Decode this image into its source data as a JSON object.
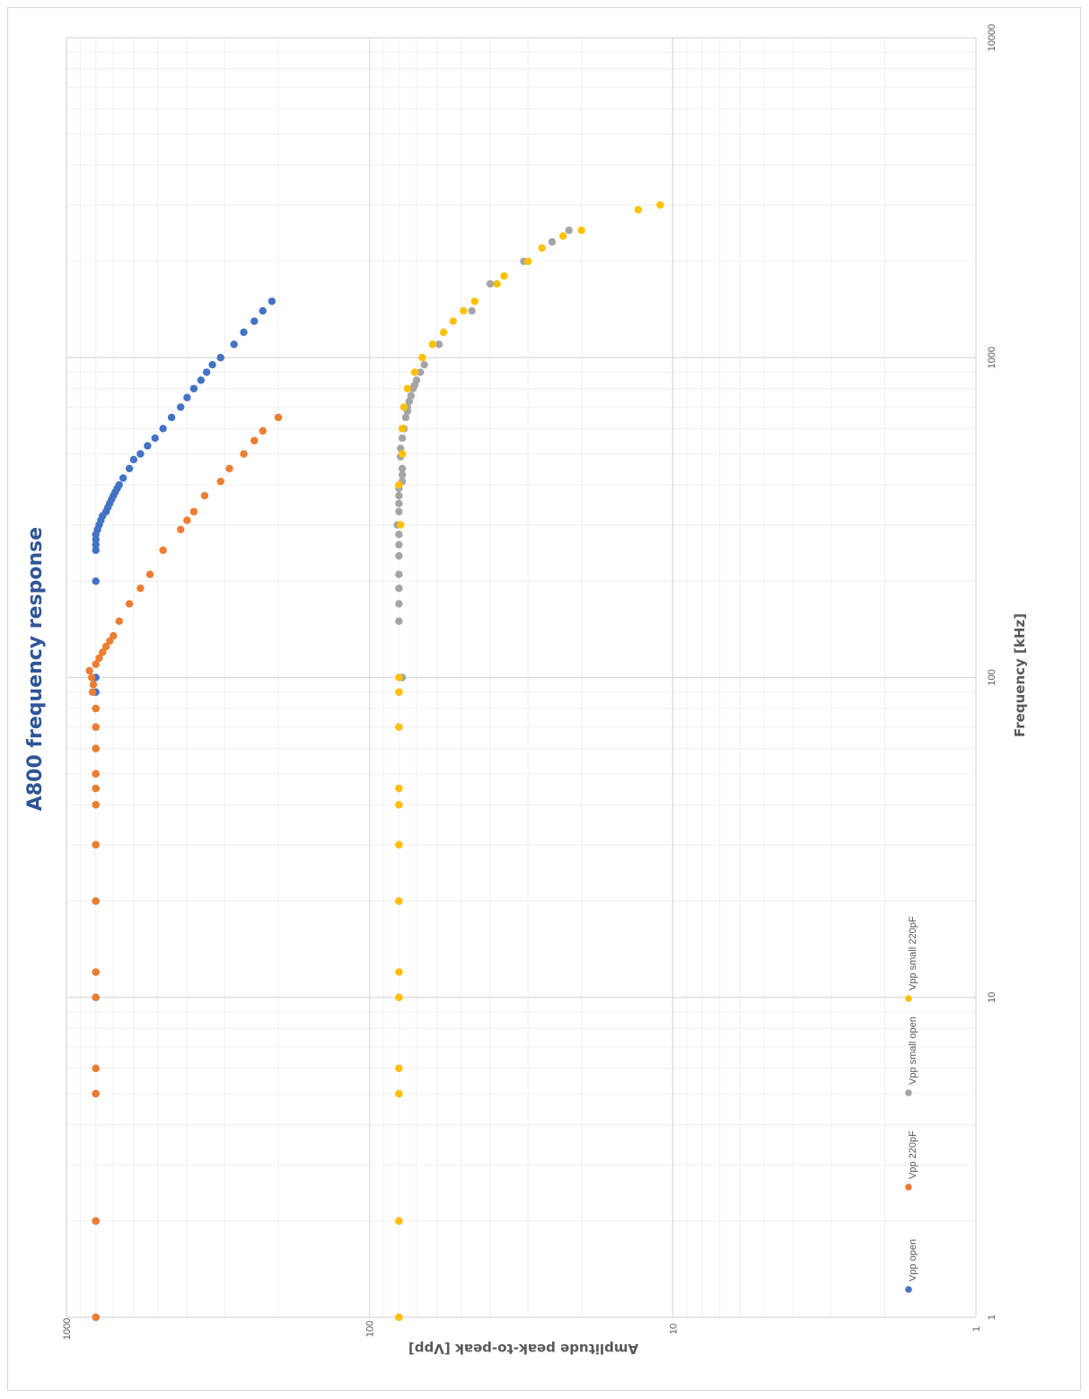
{
  "chart_data": {
    "type": "scatter",
    "title": "A800 frequency response",
    "xlabel": "Frequency [kHz]",
    "ylabel": "Amplitude peak-to-peak [Vpp]",
    "x_scale": "log",
    "y_scale": "log",
    "xlim": [
      1,
      10000
    ],
    "ylim": [
      1,
      1000
    ],
    "x_ticks": [
      "1",
      "10",
      "100",
      "1000",
      "10000"
    ],
    "y_ticks": [
      "1000",
      "100",
      "10",
      "1"
    ],
    "grid": true,
    "orientation": "rotated 90° counter-clockwise",
    "legend_position": "bottom",
    "series": [
      {
        "name": "Vpp open",
        "color": "#4472c4",
        "points": [
          [
            1,
            800
          ],
          [
            2,
            800
          ],
          [
            5,
            800
          ],
          [
            6,
            800
          ],
          [
            10,
            800
          ],
          [
            12,
            800
          ],
          [
            20,
            800
          ],
          [
            30,
            800
          ],
          [
            40,
            800
          ],
          [
            45,
            800
          ],
          [
            50,
            800
          ],
          [
            60,
            800
          ],
          [
            70,
            800
          ],
          [
            80,
            800
          ],
          [
            90,
            800
          ],
          [
            100,
            800
          ],
          [
            200,
            800
          ],
          [
            250,
            800
          ],
          [
            260,
            800
          ],
          [
            270,
            800
          ],
          [
            280,
            800
          ],
          [
            290,
            790
          ],
          [
            300,
            780
          ],
          [
            310,
            770
          ],
          [
            320,
            760
          ],
          [
            330,
            740
          ],
          [
            340,
            730
          ],
          [
            350,
            720
          ],
          [
            360,
            710
          ],
          [
            370,
            700
          ],
          [
            380,
            690
          ],
          [
            390,
            680
          ],
          [
            400,
            670
          ],
          [
            420,
            650
          ],
          [
            450,
            620
          ],
          [
            480,
            600
          ],
          [
            500,
            570
          ],
          [
            530,
            540
          ],
          [
            560,
            510
          ],
          [
            600,
            480
          ],
          [
            650,
            450
          ],
          [
            700,
            420
          ],
          [
            750,
            400
          ],
          [
            800,
            380
          ],
          [
            850,
            360
          ],
          [
            900,
            345
          ],
          [
            950,
            330
          ],
          [
            1000,
            310
          ],
          [
            1100,
            280
          ],
          [
            1200,
            260
          ],
          [
            1300,
            240
          ],
          [
            1400,
            225
          ],
          [
            1500,
            210
          ]
        ]
      },
      {
        "name": "Vpp 220pF",
        "color": "#ed7d31",
        "points": [
          [
            1,
            800
          ],
          [
            2,
            800
          ],
          [
            5,
            800
          ],
          [
            6,
            800
          ],
          [
            10,
            800
          ],
          [
            12,
            800
          ],
          [
            20,
            800
          ],
          [
            30,
            800
          ],
          [
            40,
            800
          ],
          [
            45,
            800
          ],
          [
            50,
            800
          ],
          [
            60,
            800
          ],
          [
            70,
            800
          ],
          [
            80,
            800
          ],
          [
            90,
            820
          ],
          [
            95,
            815
          ],
          [
            100,
            825
          ],
          [
            105,
            840
          ],
          [
            110,
            800
          ],
          [
            115,
            780
          ],
          [
            120,
            760
          ],
          [
            125,
            740
          ],
          [
            130,
            720
          ],
          [
            135,
            700
          ],
          [
            150,
            670
          ],
          [
            170,
            620
          ],
          [
            190,
            570
          ],
          [
            210,
            530
          ],
          [
            250,
            480
          ],
          [
            290,
            420
          ],
          [
            310,
            400
          ],
          [
            330,
            380
          ],
          [
            370,
            350
          ],
          [
            410,
            310
          ],
          [
            450,
            290
          ],
          [
            500,
            260
          ],
          [
            550,
            240
          ],
          [
            590,
            225
          ],
          [
            650,
            200
          ]
        ]
      },
      {
        "name": "Vpp small open",
        "color": "#a5a5a5",
        "points": [
          [
            1,
            80
          ],
          [
            2,
            80
          ],
          [
            5,
            80
          ],
          [
            6,
            80
          ],
          [
            10,
            80
          ],
          [
            12,
            80
          ],
          [
            20,
            80
          ],
          [
            30,
            80
          ],
          [
            40,
            80
          ],
          [
            45,
            80
          ],
          [
            70,
            80
          ],
          [
            90,
            80
          ],
          [
            100,
            78
          ],
          [
            150,
            80
          ],
          [
            170,
            80
          ],
          [
            190,
            80
          ],
          [
            210,
            80
          ],
          [
            240,
            80
          ],
          [
            260,
            80
          ],
          [
            280,
            80
          ],
          [
            300,
            81
          ],
          [
            330,
            80
          ],
          [
            350,
            80
          ],
          [
            370,
            80
          ],
          [
            390,
            80
          ],
          [
            410,
            78
          ],
          [
            430,
            78
          ],
          [
            450,
            78
          ],
          [
            490,
            79
          ],
          [
            520,
            79
          ],
          [
            560,
            78
          ],
          [
            600,
            77
          ],
          [
            650,
            76
          ],
          [
            680,
            75
          ],
          [
            700,
            75
          ],
          [
            730,
            74
          ],
          [
            760,
            73
          ],
          [
            800,
            72
          ],
          [
            820,
            71
          ],
          [
            850,
            70
          ],
          [
            900,
            68
          ],
          [
            950,
            66
          ],
          [
            1100,
            59
          ],
          [
            1400,
            46
          ],
          [
            1700,
            40
          ],
          [
            2000,
            31
          ],
          [
            2300,
            25
          ],
          [
            2500,
            22
          ]
        ]
      },
      {
        "name": "Vpp small 220pF",
        "color": "#ffc000",
        "points": [
          [
            1,
            80
          ],
          [
            2,
            80
          ],
          [
            5,
            80
          ],
          [
            6,
            80
          ],
          [
            10,
            80
          ],
          [
            12,
            80
          ],
          [
            20,
            80
          ],
          [
            30,
            80
          ],
          [
            40,
            80
          ],
          [
            45,
            80
          ],
          [
            70,
            80
          ],
          [
            90,
            80
          ],
          [
            100,
            80
          ],
          [
            300,
            79
          ],
          [
            400,
            80
          ],
          [
            500,
            78
          ],
          [
            600,
            78
          ],
          [
            700,
            77
          ],
          [
            800,
            75
          ],
          [
            900,
            71
          ],
          [
            1000,
            67
          ],
          [
            1100,
            62
          ],
          [
            1200,
            57
          ],
          [
            1300,
            53
          ],
          [
            1400,
            49
          ],
          [
            1500,
            45
          ],
          [
            1700,
            38
          ],
          [
            1800,
            36
          ],
          [
            2000,
            30
          ],
          [
            2200,
            27
          ],
          [
            2400,
            23
          ],
          [
            2500,
            20
          ],
          [
            2900,
            13
          ],
          [
            3000,
            11
          ]
        ]
      }
    ]
  }
}
